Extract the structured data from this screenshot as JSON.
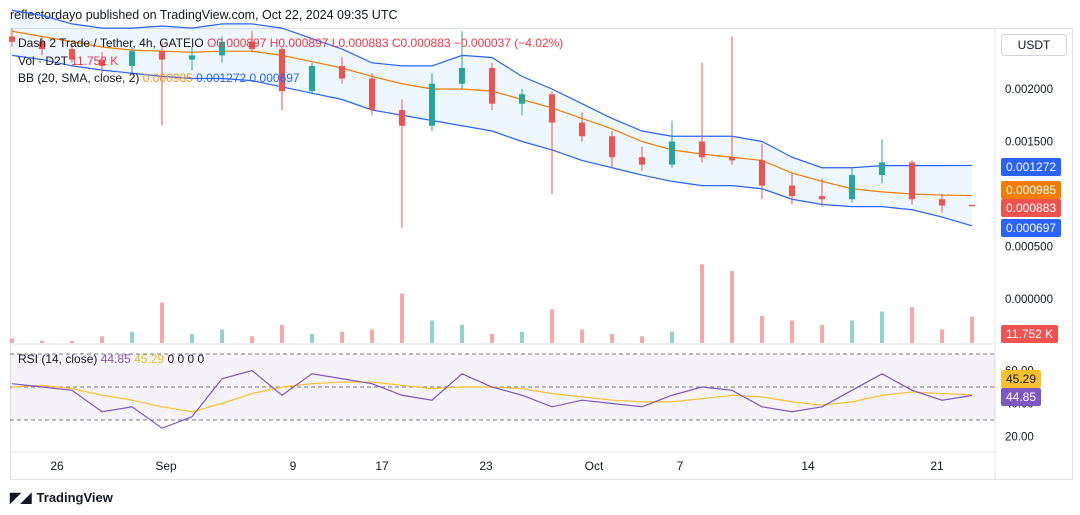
{
  "header": {
    "publisher_line": "reflectordayo published on TradingView.com, Oct 22, 2024 09:35 UTC"
  },
  "legend": {
    "symbol": "Dash 2 Trade / Tether, 4h, GATEIO",
    "ohlc": "O0.000897  H0.000897  L0.000883  C0.000883  −0.000037 (−4.02%)",
    "vol_label": "Vol · D2T",
    "vol_value": "11.752 K",
    "bb_label": "BB (20, SMA, close, 2)",
    "bb_basis": "0.000985",
    "bb_upper": "0.001272",
    "bb_lower": "0.000697",
    "rsi_label": "RSI (14, close)",
    "rsi_value": "44.85",
    "rsi_ma": "45.29",
    "rsi_extra": "0  0  0  0"
  },
  "currency_button": "USDT",
  "price_axis": [
    "0.002000",
    "0.001500",
    "0.000500",
    "0.000000"
  ],
  "rsi_axis": [
    "60.00",
    "40.00",
    "20.00"
  ],
  "price_tags": {
    "upper": "0.001272",
    "basis": "0.000985",
    "close": "0.000883",
    "lower": "0.000697",
    "volume": "11.752 K",
    "rsi_ma": "45.29",
    "rsi": "44.85"
  },
  "x_axis": [
    "26",
    "Sep",
    "9",
    "17",
    "23",
    "Oct",
    "7",
    "14",
    "21"
  ],
  "footer": {
    "brand": "TradingView"
  },
  "colors": {
    "up": "#26a69a",
    "down": "#ef5350",
    "bb_band": "#2962ff",
    "bb_basis": "#f57c00",
    "rsi": "#7e57c2",
    "rsi_ma": "#fbc02d"
  },
  "chart_data": {
    "type": "candlestick",
    "interval": "4h",
    "price_ylim": [
      0,
      0.0024
    ],
    "rsi_ylim": [
      15,
      75
    ],
    "rsi_levels": [
      70,
      50,
      30
    ],
    "candles": [
      {
        "x": "Aug 24",
        "o": 0.0025,
        "h": 0.00258,
        "l": 0.0024,
        "c": 0.00245
      },
      {
        "x": "Aug 26",
        "o": 0.00245,
        "h": 0.0025,
        "l": 0.00232,
        "c": 0.00238
      },
      {
        "x": "Aug 28",
        "o": 0.00238,
        "h": 0.00242,
        "l": 0.00225,
        "c": 0.00228
      },
      {
        "x": "Aug 30",
        "o": 0.00228,
        "h": 0.00235,
        "l": 0.00215,
        "c": 0.00222
      },
      {
        "x": "Sep 1",
        "o": 0.00222,
        "h": 0.0024,
        "l": 0.00215,
        "c": 0.00236
      },
      {
        "x": "Sep 3",
        "o": 0.00236,
        "h": 0.00245,
        "l": 0.00165,
        "c": 0.00228
      },
      {
        "x": "Sep 5",
        "o": 0.00228,
        "h": 0.0024,
        "l": 0.00218,
        "c": 0.00232
      },
      {
        "x": "Sep 7",
        "o": 0.00232,
        "h": 0.0025,
        "l": 0.00225,
        "c": 0.00245
      },
      {
        "x": "Sep 9",
        "o": 0.00245,
        "h": 0.00255,
        "l": 0.00235,
        "c": 0.00238
      },
      {
        "x": "Sep 11",
        "o": 0.00238,
        "h": 0.0024,
        "l": 0.0018,
        "c": 0.00198
      },
      {
        "x": "Sep 13",
        "o": 0.00198,
        "h": 0.00225,
        "l": 0.00195,
        "c": 0.00222
      },
      {
        "x": "Sep 15",
        "o": 0.00222,
        "h": 0.0023,
        "l": 0.00205,
        "c": 0.0021
      },
      {
        "x": "Sep 17",
        "o": 0.0021,
        "h": 0.00215,
        "l": 0.00175,
        "c": 0.0018
      },
      {
        "x": "Sep 18",
        "o": 0.0018,
        "h": 0.0019,
        "l": 0.00068,
        "c": 0.00165
      },
      {
        "x": "Sep 20",
        "o": 0.00165,
        "h": 0.00215,
        "l": 0.0016,
        "c": 0.00205
      },
      {
        "x": "Sep 22",
        "o": 0.00205,
        "h": 0.00255,
        "l": 0.002,
        "c": 0.0022
      },
      {
        "x": "Sep 24",
        "o": 0.0022,
        "h": 0.00225,
        "l": 0.0018,
        "c": 0.00186
      },
      {
        "x": "Sep 26",
        "o": 0.00186,
        "h": 0.002,
        "l": 0.00175,
        "c": 0.00195
      },
      {
        "x": "Sep 28",
        "o": 0.00195,
        "h": 0.00198,
        "l": 0.001,
        "c": 0.00168
      },
      {
        "x": "Sep 30",
        "o": 0.00168,
        "h": 0.00178,
        "l": 0.0015,
        "c": 0.00155
      },
      {
        "x": "Oct 2",
        "o": 0.00155,
        "h": 0.0016,
        "l": 0.00125,
        "c": 0.00135
      },
      {
        "x": "Oct 4",
        "o": 0.00135,
        "h": 0.00145,
        "l": 0.00122,
        "c": 0.00128
      },
      {
        "x": "Oct 6",
        "o": 0.00128,
        "h": 0.0017,
        "l": 0.00125,
        "c": 0.0015
      },
      {
        "x": "Oct 8",
        "o": 0.0015,
        "h": 0.00225,
        "l": 0.0013,
        "c": 0.00135
      },
      {
        "x": "Oct 10",
        "o": 0.00135,
        "h": 0.0025,
        "l": 0.00128,
        "c": 0.00132
      },
      {
        "x": "Oct 12",
        "o": 0.00132,
        "h": 0.00148,
        "l": 0.00095,
        "c": 0.00108
      },
      {
        "x": "Oct 14",
        "o": 0.00108,
        "h": 0.0012,
        "l": 0.0009,
        "c": 0.00098
      },
      {
        "x": "Oct 16",
        "o": 0.00098,
        "h": 0.00115,
        "l": 0.00088,
        "c": 0.00095
      },
      {
        "x": "Oct 18",
        "o": 0.00095,
        "h": 0.00125,
        "l": 0.00092,
        "c": 0.00118
      },
      {
        "x": "Oct 19",
        "o": 0.00118,
        "h": 0.00152,
        "l": 0.0011,
        "c": 0.0013
      },
      {
        "x": "Oct 20",
        "o": 0.0013,
        "h": 0.00132,
        "l": 0.0009,
        "c": 0.00095
      },
      {
        "x": "Oct 21",
        "o": 0.00095,
        "h": 0.001,
        "l": 0.00082,
        "c": 0.00089
      },
      {
        "x": "Oct 22",
        "o": 0.000897,
        "h": 0.000897,
        "l": 0.000883,
        "c": 0.000883
      }
    ],
    "bb_upper": [
      0.00275,
      0.0027,
      0.00262,
      0.00258,
      0.00258,
      0.0026,
      0.00258,
      0.00262,
      0.00262,
      0.00258,
      0.00248,
      0.00238,
      0.00225,
      0.00222,
      0.00222,
      0.00232,
      0.0023,
      0.00212,
      0.002,
      0.00186,
      0.00172,
      0.0016,
      0.00155,
      0.00155,
      0.00155,
      0.0015,
      0.00135,
      0.00125,
      0.00125,
      0.00127,
      0.00127,
      0.00127,
      0.001272
    ],
    "bb_basis": [
      0.00255,
      0.0025,
      0.00245,
      0.0024,
      0.00237,
      0.00236,
      0.00235,
      0.00236,
      0.00236,
      0.00232,
      0.00226,
      0.0022,
      0.00212,
      0.00205,
      0.002,
      0.002,
      0.00198,
      0.0019,
      0.00182,
      0.00172,
      0.00162,
      0.0015,
      0.00142,
      0.00138,
      0.00135,
      0.00132,
      0.0012,
      0.00112,
      0.00105,
      0.00102,
      0.001,
      0.00099,
      0.000985
    ],
    "bb_lower": [
      0.00232,
      0.00228,
      0.00222,
      0.00218,
      0.00215,
      0.00212,
      0.0021,
      0.0021,
      0.00208,
      0.00202,
      0.00196,
      0.0019,
      0.0018,
      0.00175,
      0.0017,
      0.00165,
      0.0016,
      0.0015,
      0.00142,
      0.00132,
      0.00125,
      0.00118,
      0.00112,
      0.00108,
      0.00108,
      0.00105,
      0.00095,
      0.0009,
      0.00088,
      0.00088,
      0.00085,
      0.00078,
      0.000697
    ],
    "volume_k": [
      2,
      1,
      1,
      3,
      5,
      18,
      4,
      6,
      3,
      8,
      4,
      5,
      6,
      22,
      10,
      8,
      4,
      5,
      15,
      6,
      4,
      3,
      5,
      35,
      32,
      12,
      10,
      8,
      10,
      14,
      16,
      6,
      11.752
    ],
    "rsi": [
      52,
      50,
      48,
      35,
      38,
      25,
      32,
      55,
      60,
      45,
      58,
      55,
      52,
      45,
      42,
      58,
      50,
      45,
      38,
      42,
      40,
      38,
      45,
      50,
      48,
      38,
      35,
      38,
      48,
      58,
      48,
      42,
      44.85
    ],
    "rsi_ma": [
      50,
      51,
      49,
      45,
      42,
      38,
      35,
      40,
      46,
      50,
      52,
      53,
      53,
      51,
      49,
      50,
      50,
      49,
      46,
      44,
      42,
      41,
      41,
      43,
      45,
      44,
      41,
      39,
      41,
      45,
      47,
      46,
      45.29
    ]
  }
}
